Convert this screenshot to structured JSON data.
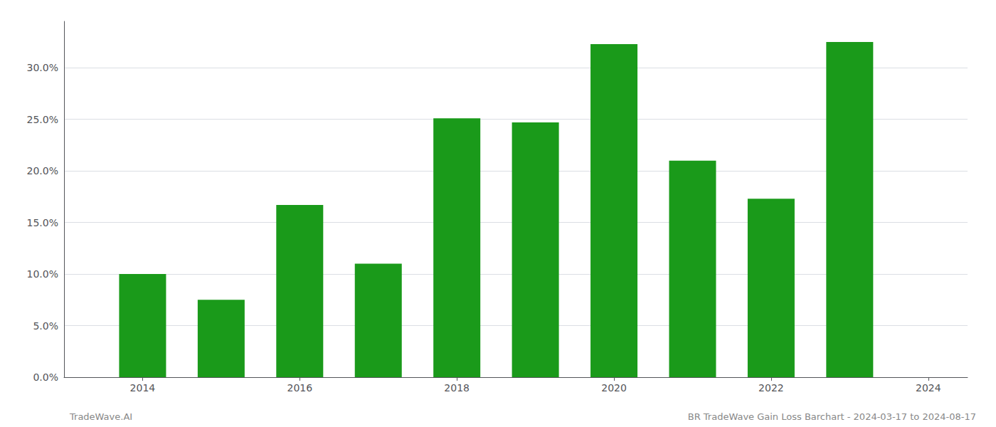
{
  "chart_data": {
    "type": "bar",
    "x": [
      2014,
      2015,
      2016,
      2017,
      2018,
      2019,
      2020,
      2021,
      2022,
      2023
    ],
    "values": [
      0.1,
      0.075,
      0.167,
      0.11,
      0.251,
      0.247,
      0.323,
      0.21,
      0.173,
      0.325
    ],
    "color": "#1a9a1a",
    "xlim": [
      2013.0,
      2024.5
    ],
    "xticks": [
      2014,
      2016,
      2018,
      2020,
      2022,
      2024
    ],
    "ylim": [
      0,
      0.345
    ],
    "yticks": [
      {
        "value": 0.0,
        "label": "0.0%"
      },
      {
        "value": 0.05,
        "label": "5.0%"
      },
      {
        "value": 0.1,
        "label": "10.0%"
      },
      {
        "value": 0.15,
        "label": "15.0%"
      },
      {
        "value": 0.2,
        "label": "20.0%"
      },
      {
        "value": 0.25,
        "label": "25.0%"
      },
      {
        "value": 0.3,
        "label": "30.0%"
      }
    ],
    "grid": true,
    "annotations": [
      "TradeWave.AI",
      "BR TradeWave Gain Loss Barchart - 2024-03-17 to 2024-08-17"
    ]
  }
}
